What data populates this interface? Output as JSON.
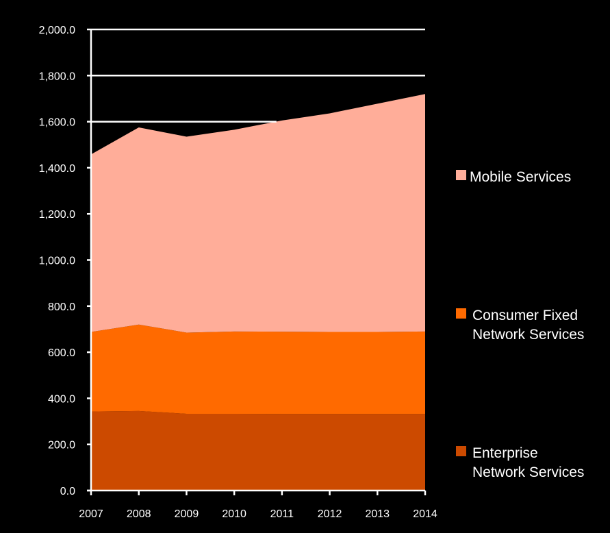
{
  "chart_data": {
    "type": "area",
    "stacked": true,
    "x": [
      2007,
      2008,
      2009,
      2010,
      2011,
      2012,
      2013,
      2014
    ],
    "series": [
      {
        "name": "Enterprise Network Services",
        "values": [
          343,
          345,
          333,
          333,
          332,
          332,
          332,
          332
        ],
        "color": "#cc4a00"
      },
      {
        "name": "Consumer Fixed Network Services",
        "values": [
          345,
          375,
          352,
          357,
          357,
          356,
          356,
          358
        ],
        "color": "#ff6a00"
      },
      {
        "name": "Mobile Services",
        "values": [
          770,
          855,
          850,
          875,
          916,
          948,
          990,
          1030
        ],
        "color": "#ffad99"
      }
    ],
    "ylim": [
      0,
      2000
    ],
    "yticks": [
      "0.0",
      "200.0",
      "400.0",
      "600.0",
      "800.0",
      "1,000.0",
      "1,200.0",
      "1,400.0",
      "1,600.0",
      "1,800.0",
      "2,000.0"
    ],
    "xtick_labels": [
      "2007",
      "2008",
      "2009",
      "2010",
      "2011",
      "2012",
      "2013",
      "2014"
    ],
    "legend": {
      "position": "right",
      "entries": [
        {
          "lines": [
            "Mobile Services"
          ],
          "color": "#ffad99"
        },
        {
          "lines": [
            "Consumer Fixed",
            "Network Services"
          ],
          "color": "#ff6a00"
        },
        {
          "lines": [
            "Enterprise",
            "Network Services"
          ],
          "color": "#cc4a00"
        }
      ]
    },
    "grid": "horizontal",
    "background": "#000000",
    "gridline_color": "#ffffff"
  }
}
